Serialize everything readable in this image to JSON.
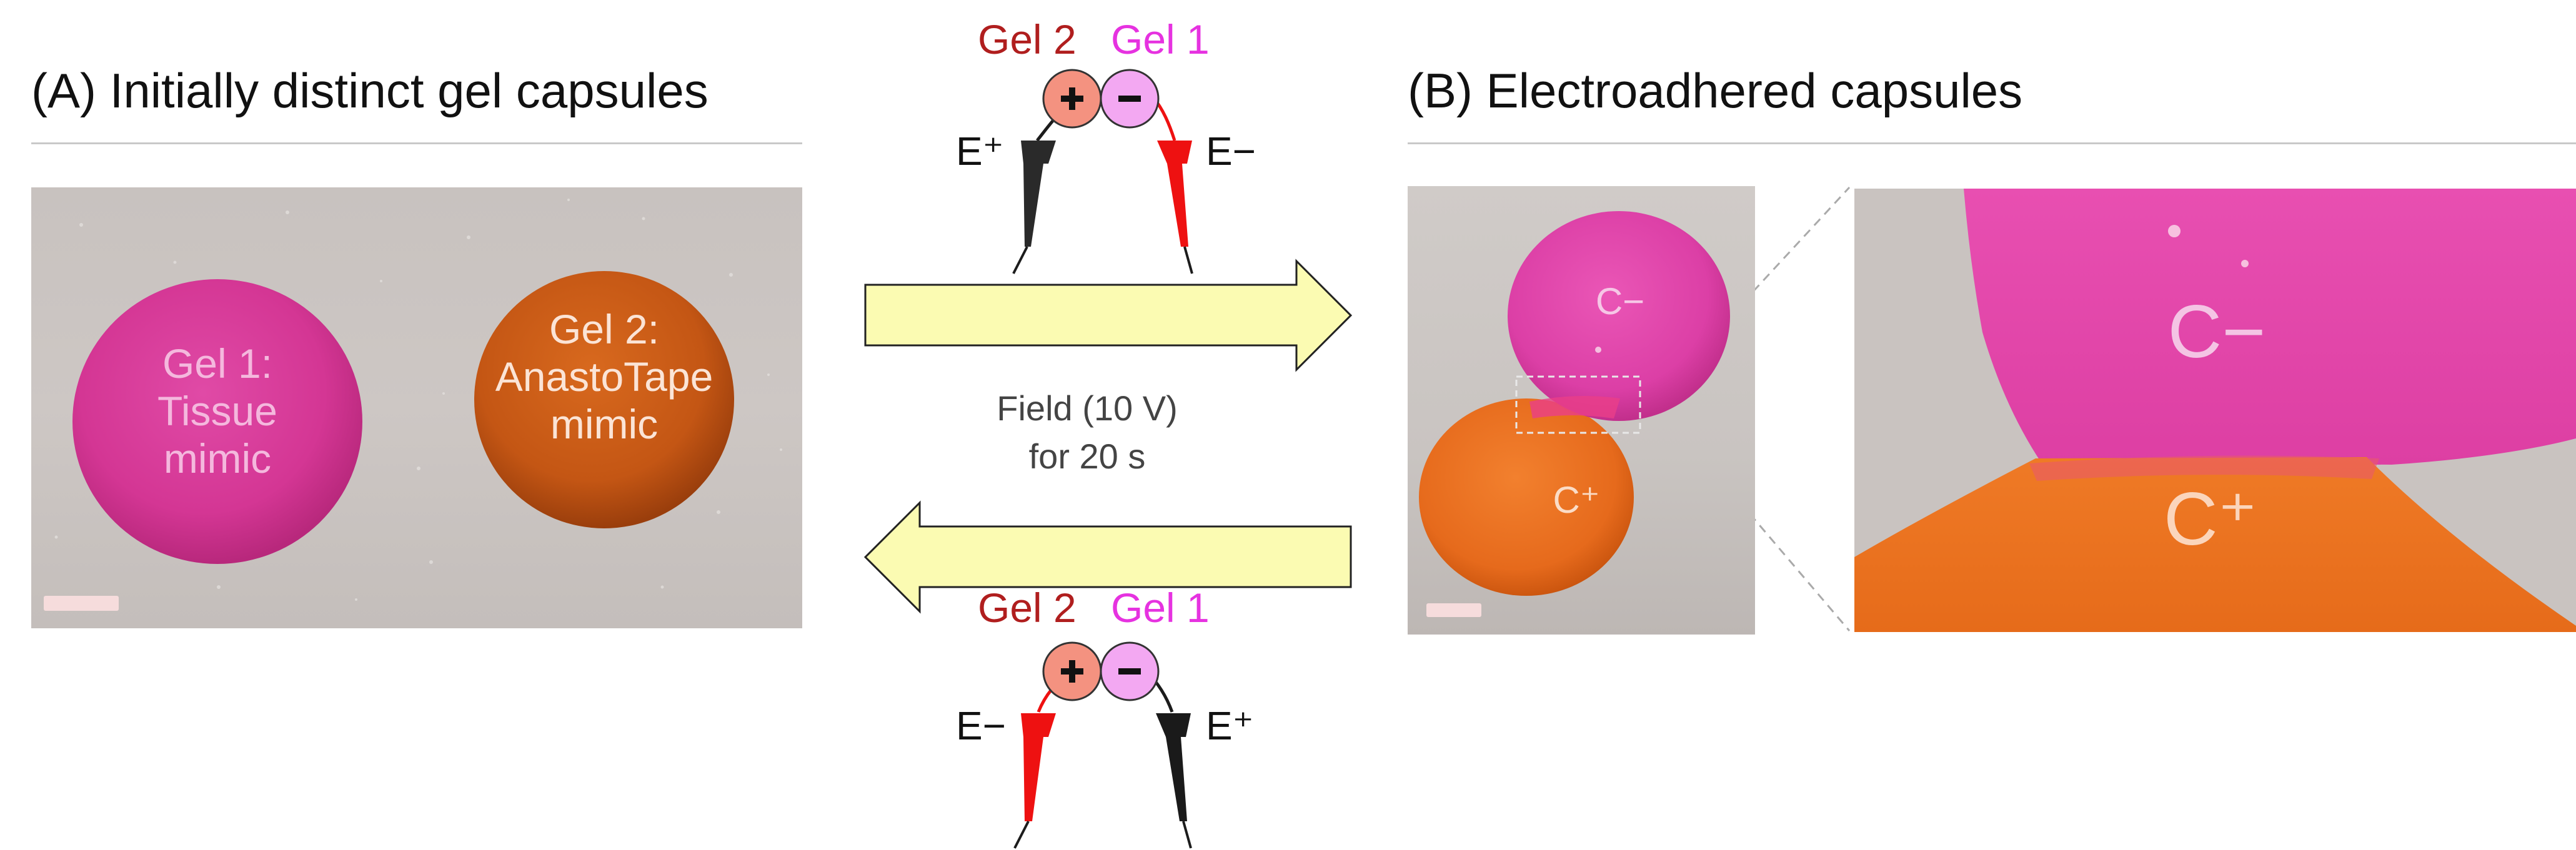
{
  "panel_a": {
    "title": "(A) Initially distinct gel capsules",
    "gel1": {
      "line1": "Gel 1:",
      "line2": "Tissue",
      "line3": "mimic"
    },
    "gel2": {
      "line1": "Gel 2:",
      "line2": "AnastoTape",
      "line3": "mimic"
    }
  },
  "panel_b": {
    "title": "(B) Electroadhered capsules",
    "c_minus": "C−",
    "c_plus": "C⁺",
    "zoom_c_minus": "C−",
    "zoom_c_plus": "C⁺"
  },
  "center": {
    "field_line1": "Field (10 V)",
    "field_line2": "for 20 s",
    "top_schematic": {
      "gel2": "Gel 2",
      "gel1": "Gel 1",
      "e_left": "E⁺",
      "e_right": "E−",
      "plus": "+",
      "minus": "−"
    },
    "bottom_schematic": {
      "gel2": "Gel 2",
      "gel1": "Gel 1",
      "e_left": "E−",
      "e_right": "E⁺",
      "plus": "+",
      "minus": "−"
    }
  },
  "colors": {
    "gel1_pink": "#dc3d9e",
    "gel2_orange": "#e0691a",
    "gel2_label": "#b01e1e",
    "gel1_label": "#e632e0",
    "arrow_fill": "#fbfbb2",
    "probe_red": "#ee1111",
    "probe_black": "#1c1c1c",
    "photo_bg": "#c9c3c0"
  }
}
